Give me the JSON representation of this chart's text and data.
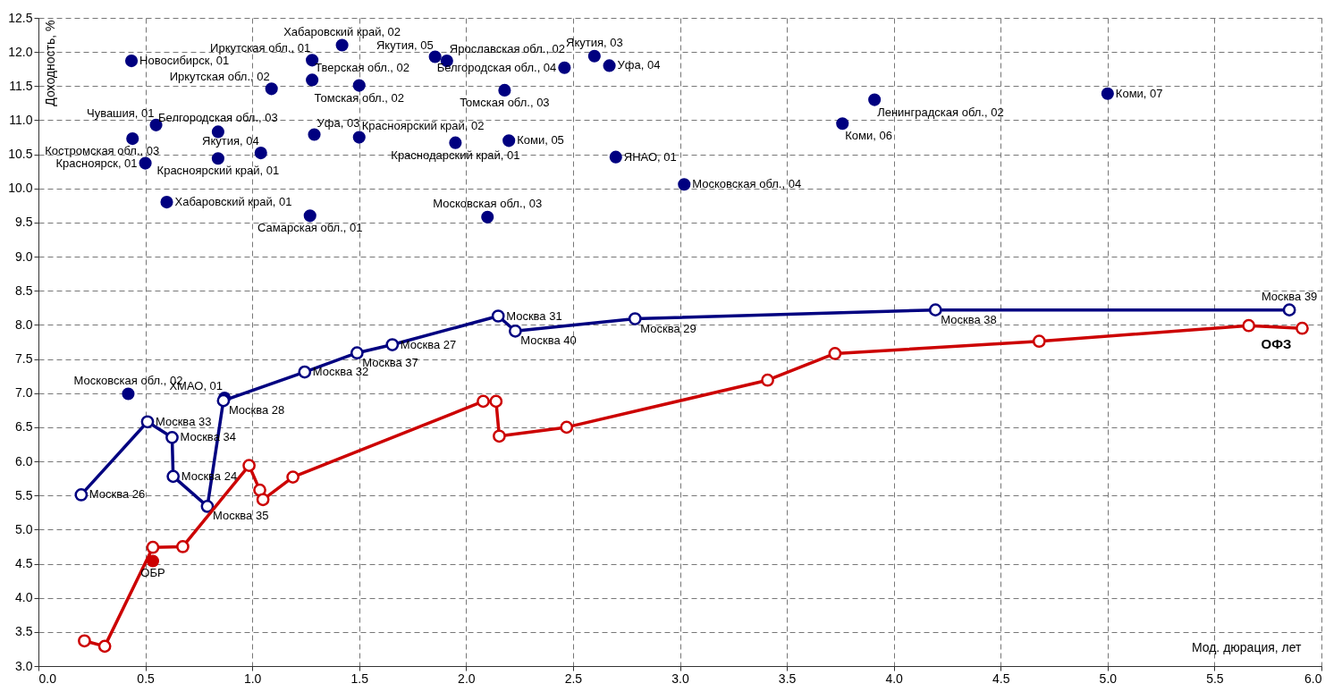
{
  "chart_data": {
    "type": "scatter",
    "xlabel": "Мод. дюрация, лет",
    "ylabel": "Доходность, %",
    "grid": true,
    "marker": "circle",
    "xlim": [
      0,
      6
    ],
    "ylim": [
      3,
      12.5
    ],
    "xticks": [
      {
        "value": 0,
        "label": "0.0"
      },
      {
        "value": 0.5,
        "label": "0.5"
      },
      {
        "value": 1,
        "label": "1.0"
      },
      {
        "value": 1.5,
        "label": "1.5"
      },
      {
        "value": 2,
        "label": "2.0"
      },
      {
        "value": 2.5,
        "label": "2.5"
      },
      {
        "value": 3,
        "label": "3.0"
      },
      {
        "value": 3.5,
        "label": "3.5"
      },
      {
        "value": 4,
        "label": "4.0"
      },
      {
        "value": 4.5,
        "label": "4.5"
      },
      {
        "value": 5,
        "label": "5.0"
      },
      {
        "value": 5.5,
        "label": "5.5"
      },
      {
        "value": 6,
        "label": "6.0"
      }
    ],
    "yticks": [
      {
        "value": 3,
        "label": "3.0"
      },
      {
        "value": 3.5,
        "label": "3.5"
      },
      {
        "value": 4,
        "label": "4.0"
      },
      {
        "value": 4.5,
        "label": "4.5"
      },
      {
        "value": 5,
        "label": "5.0"
      },
      {
        "value": 5.5,
        "label": "5.5"
      },
      {
        "value": 6,
        "label": "6.0"
      },
      {
        "value": 6.5,
        "label": "6.5"
      },
      {
        "value": 7,
        "label": "7.0"
      },
      {
        "value": 7.5,
        "label": "7.5"
      },
      {
        "value": 8,
        "label": "8.0"
      },
      {
        "value": 8.5,
        "label": "8.5"
      },
      {
        "value": 9,
        "label": "9.0"
      },
      {
        "value": 9.5,
        "label": "9.5"
      },
      {
        "value": 10,
        "label": "10.0"
      },
      {
        "value": 10.5,
        "label": "10.5"
      },
      {
        "value": 11,
        "label": "11.0"
      },
      {
        "value": 11.5,
        "label": "11.5"
      },
      {
        "value": 12,
        "label": "12.0"
      },
      {
        "value": 12.5,
        "label": "12.5"
      }
    ],
    "series": [
      {
        "color": "#000080",
        "x": [
          0.435,
          1.28,
          1.42,
          1.855,
          1.91,
          2.46,
          2.6,
          2.67,
          1.09,
          1.28,
          1.5,
          2.18,
          3.91,
          5.0,
          0.55,
          0.84,
          1.29,
          1.5,
          1.95,
          2.2,
          3.76,
          0.44,
          1.04,
          0.84,
          0.5,
          2.7,
          3.02,
          0.6,
          1.27,
          2.1,
          0.42,
          0.87
        ],
        "values": [
          11.87,
          11.88,
          12.1,
          11.93,
          11.87,
          11.77,
          11.94,
          11.8,
          11.46,
          11.59,
          11.51,
          11.44,
          11.3,
          11.39,
          10.93,
          10.83,
          10.79,
          10.75,
          10.67,
          10.7,
          10.95,
          10.73,
          10.52,
          10.44,
          10.37,
          10.46,
          10.06,
          9.8,
          9.6,
          9.58,
          6.99,
          6.93
        ]
      },
      {
        "type": "line",
        "color": "#000080",
        "x": [
          0.2,
          0.51,
          0.625,
          0.63,
          0.79,
          0.865,
          1.245,
          1.49,
          1.655,
          2.15,
          2.23,
          2.79,
          4.195,
          5.85
        ],
        "values": [
          5.51,
          6.58,
          6.35,
          5.78,
          5.34,
          6.89,
          7.31,
          7.59,
          7.71,
          8.13,
          7.91,
          8.09,
          8.22,
          8.22
        ]
      },
      {
        "type": "line",
        "name": "ОФЗ",
        "color": "#cc0000",
        "x": [
          0.215,
          0.31,
          0.535,
          0.675,
          0.985,
          1.035,
          1.05,
          1.19,
          2.08,
          2.14,
          2.155,
          2.47,
          3.41,
          3.725,
          4.68,
          5.66,
          5.91
        ],
        "values": [
          3.37,
          3.29,
          4.74,
          4.75,
          5.94,
          5.58,
          5.44,
          5.77,
          6.88,
          6.88,
          6.37,
          6.5,
          7.19,
          7.58,
          7.76,
          7.99,
          7.95
        ]
      },
      {
        "name": "ОБР",
        "color": "#cc0000",
        "x": [
          0.535
        ],
        "values": [
          4.54
        ]
      }
    ],
    "annotations": [
      {
        "text": "Новосибирск, 01",
        "x": 0.435,
        "y": 11.87
      },
      {
        "text": "Иркутская обл., 01",
        "x": 1.28,
        "y": 11.88
      },
      {
        "text": "Хабаровский край, 02",
        "x": 1.42,
        "y": 12.1
      },
      {
        "text": "Якутия, 05",
        "x": 1.855,
        "y": 11.93
      },
      {
        "text": "Ярославская обл., 02",
        "x": 1.91,
        "y": 11.87
      },
      {
        "text": "Белгородская обл., 04",
        "x": 2.46,
        "y": 11.77
      },
      {
        "text": "Якутия, 03",
        "x": 2.6,
        "y": 11.94
      },
      {
        "text": "Уфа, 04",
        "x": 2.67,
        "y": 11.8
      },
      {
        "text": "Иркутская обл., 02",
        "x": 1.09,
        "y": 11.46
      },
      {
        "text": "Тверская обл., 02",
        "x": 1.28,
        "y": 11.59
      },
      {
        "text": "Томская обл., 02",
        "x": 1.5,
        "y": 11.51
      },
      {
        "text": "Томская обл., 03",
        "x": 2.18,
        "y": 11.44
      },
      {
        "text": "Ленинградская обл., 02",
        "x": 3.91,
        "y": 11.3
      },
      {
        "text": "Коми, 07",
        "x": 5.0,
        "y": 11.39
      },
      {
        "text": "Чувашия, 01",
        "x": 0.55,
        "y": 10.93
      },
      {
        "text": "Белгородская обл., 03",
        "x": 0.84,
        "y": 10.83
      },
      {
        "text": "Уфа, 03",
        "x": 1.29,
        "y": 10.79
      },
      {
        "text": "Красноярский край, 02",
        "x": 1.5,
        "y": 10.75
      },
      {
        "text": "Краснодарский край, 01",
        "x": 1.95,
        "y": 10.67
      },
      {
        "text": "Коми, 05",
        "x": 2.2,
        "y": 10.7
      },
      {
        "text": "Коми, 06",
        "x": 3.76,
        "y": 10.95
      },
      {
        "text": "Костромская обл., 03",
        "x": 0.44,
        "y": 10.73
      },
      {
        "text": "Якутия, 04",
        "x": 1.04,
        "y": 10.52
      },
      {
        "text": "Красноярский край, 01",
        "x": 0.84,
        "y": 10.44
      },
      {
        "text": "Красноярск, 01",
        "x": 0.5,
        "y": 10.37
      },
      {
        "text": "ЯНАО, 01",
        "x": 2.7,
        "y": 10.46
      },
      {
        "text": "Московская обл., 04",
        "x": 3.02,
        "y": 10.06
      },
      {
        "text": "Хабаровский край, 01",
        "x": 0.6,
        "y": 9.8
      },
      {
        "text": "Самарская обл., 01",
        "x": 1.27,
        "y": 9.6
      },
      {
        "text": "Московская обл., 03",
        "x": 2.1,
        "y": 9.58
      },
      {
        "text": "Московская обл., 02",
        "x": 0.42,
        "y": 6.99
      },
      {
        "text": "ХМАО, 01",
        "x": 0.87,
        "y": 6.93
      },
      {
        "text": "Москва 26",
        "x": 0.2,
        "y": 5.51
      },
      {
        "text": "Москва 33",
        "x": 0.51,
        "y": 6.58
      },
      {
        "text": "Москва 34",
        "x": 0.625,
        "y": 6.35
      },
      {
        "text": "Москва 24",
        "x": 0.63,
        "y": 5.78
      },
      {
        "text": "Москва 35",
        "x": 0.79,
        "y": 5.34
      },
      {
        "text": "Москва 28",
        "x": 0.865,
        "y": 6.89
      },
      {
        "text": "Москва 32",
        "x": 1.245,
        "y": 7.31
      },
      {
        "text": "Москва 37",
        "x": 1.49,
        "y": 7.59
      },
      {
        "text": "Москва 27",
        "x": 1.655,
        "y": 7.71
      },
      {
        "text": "Москва 31",
        "x": 2.15,
        "y": 8.13
      },
      {
        "text": "Москва 40",
        "x": 2.23,
        "y": 7.91
      },
      {
        "text": "Москва 29",
        "x": 2.79,
        "y": 8.09
      },
      {
        "text": "Москва 38",
        "x": 4.195,
        "y": 8.22
      },
      {
        "text": "Москва 39",
        "x": 5.85,
        "y": 8.22
      }
    ]
  }
}
